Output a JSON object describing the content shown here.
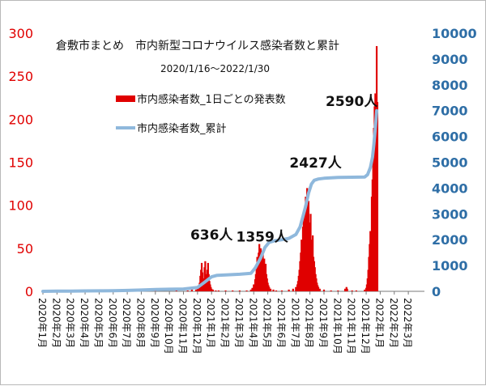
{
  "chart_data": {
    "type": "bar+line",
    "title": "倉敷市まとめ　市内新型コロナウイルス感染者数と累計",
    "subtitle": "2020/1/16～2022/1/30",
    "x_tick_labels": [
      "2020年1月",
      "2020年2月",
      "2020年3月",
      "2020年4月",
      "2020年5月",
      "2020年6月",
      "2020年7月",
      "2020年8月",
      "2020年9月",
      "2020年10月",
      "2020年11月",
      "2020年12月",
      "2021年1月",
      "2021年2月",
      "2021年3月",
      "2021年4月",
      "2021年5月",
      "2021年6月",
      "2021年7月",
      "2021年8月",
      "2021年9月",
      "2021年10月",
      "2021年11月",
      "2021年12月",
      "2022年1月",
      "2022年2月",
      "2022年3月"
    ],
    "y_left": {
      "ticks": [
        0,
        50,
        100,
        150,
        200,
        250,
        300
      ],
      "ylim": [
        0,
        300
      ],
      "color": "#e00000"
    },
    "y_right": {
      "ticks": [
        0,
        1000,
        2000,
        3000,
        4000,
        5000,
        6000,
        7000,
        8000,
        9000,
        10000
      ],
      "ylim": [
        0,
        10000
      ],
      "color": "#2e6ea6"
    },
    "legend": {
      "placement": "top-left",
      "items": [
        {
          "label": "市内感染者数_1日ごとの発表数",
          "kind": "bar",
          "color": "#e00000"
        },
        {
          "label": "市内感染者数_累計",
          "kind": "line",
          "color": "#8fb8dc"
        }
      ]
    },
    "annotations": [
      {
        "text": "636人",
        "month_index": 12.0
      },
      {
        "text": "1359人",
        "month_index": 15.6
      },
      {
        "text": "2427人",
        "month_index": 19.4
      },
      {
        "text": "2590人",
        "month_index": 23.7
      }
    ],
    "series": [
      {
        "name": "市内感染者数_1日ごとの発表数",
        "type": "bar",
        "axis": "left",
        "color": "#e00000",
        "points": [
          [
            7.0,
            1
          ],
          [
            8.0,
            1
          ],
          [
            9.5,
            1
          ],
          [
            10.3,
            1
          ],
          [
            10.6,
            2
          ],
          [
            10.9,
            2
          ],
          [
            11.0,
            4
          ],
          [
            11.1,
            6
          ],
          [
            11.15,
            10
          ],
          [
            11.2,
            18
          ],
          [
            11.25,
            25
          ],
          [
            11.3,
            33
          ],
          [
            11.35,
            22
          ],
          [
            11.4,
            15
          ],
          [
            11.45,
            10
          ],
          [
            11.5,
            28
          ],
          [
            11.55,
            35
          ],
          [
            11.6,
            20
          ],
          [
            11.65,
            14
          ],
          [
            11.7,
            25
          ],
          [
            11.75,
            33
          ],
          [
            11.8,
            20
          ],
          [
            11.85,
            12
          ],
          [
            11.9,
            8
          ],
          [
            11.95,
            5
          ],
          [
            12.0,
            3
          ],
          [
            12.1,
            2
          ],
          [
            12.3,
            1
          ],
          [
            12.5,
            1
          ],
          [
            13.0,
            1
          ],
          [
            13.5,
            1
          ],
          [
            14.0,
            1
          ],
          [
            14.5,
            1
          ],
          [
            14.8,
            2
          ],
          [
            14.9,
            4
          ],
          [
            15.0,
            8
          ],
          [
            15.1,
            14
          ],
          [
            15.15,
            20
          ],
          [
            15.2,
            28
          ],
          [
            15.25,
            40
          ],
          [
            15.3,
            30
          ],
          [
            15.35,
            45
          ],
          [
            15.4,
            55
          ],
          [
            15.45,
            38
          ],
          [
            15.5,
            50
          ],
          [
            15.55,
            42
          ],
          [
            15.6,
            35
          ],
          [
            15.65,
            45
          ],
          [
            15.7,
            30
          ],
          [
            15.75,
            38
          ],
          [
            15.8,
            25
          ],
          [
            15.85,
            32
          ],
          [
            15.9,
            20
          ],
          [
            15.95,
            15
          ],
          [
            16.0,
            10
          ],
          [
            16.05,
            7
          ],
          [
            16.1,
            5
          ],
          [
            16.2,
            3
          ],
          [
            16.4,
            2
          ],
          [
            16.6,
            1
          ],
          [
            17.0,
            1
          ],
          [
            17.5,
            2
          ],
          [
            17.8,
            3
          ],
          [
            18.0,
            5
          ],
          [
            18.1,
            8
          ],
          [
            18.15,
            12
          ],
          [
            18.2,
            18
          ],
          [
            18.25,
            25
          ],
          [
            18.3,
            35
          ],
          [
            18.35,
            45
          ],
          [
            18.4,
            60
          ],
          [
            18.45,
            52
          ],
          [
            18.5,
            75
          ],
          [
            18.55,
            90
          ],
          [
            18.6,
            70
          ],
          [
            18.65,
            100
          ],
          [
            18.7,
            110
          ],
          [
            18.75,
            85
          ],
          [
            18.8,
            120
          ],
          [
            18.85,
            95
          ],
          [
            18.9,
            105
          ],
          [
            18.95,
            80
          ],
          [
            19.0,
            70
          ],
          [
            19.05,
            90
          ],
          [
            19.1,
            60
          ],
          [
            19.15,
            55
          ],
          [
            19.2,
            65
          ],
          [
            19.25,
            40
          ],
          [
            19.3,
            35
          ],
          [
            19.35,
            28
          ],
          [
            19.4,
            20
          ],
          [
            19.45,
            15
          ],
          [
            19.5,
            10
          ],
          [
            19.55,
            7
          ],
          [
            19.6,
            5
          ],
          [
            19.7,
            3
          ],
          [
            20.0,
            2
          ],
          [
            20.5,
            1
          ],
          [
            21.0,
            1
          ],
          [
            21.5,
            3
          ],
          [
            21.6,
            5
          ],
          [
            21.65,
            3
          ],
          [
            22.0,
            1
          ],
          [
            22.3,
            1
          ],
          [
            22.9,
            2
          ],
          [
            23.0,
            4
          ],
          [
            23.05,
            8
          ],
          [
            23.1,
            15
          ],
          [
            23.15,
            25
          ],
          [
            23.2,
            40
          ],
          [
            23.25,
            55
          ],
          [
            23.3,
            70
          ],
          [
            23.35,
            65
          ],
          [
            23.4,
            110
          ],
          [
            23.45,
            130
          ],
          [
            23.5,
            160
          ],
          [
            23.55,
            190
          ],
          [
            23.6,
            215
          ],
          [
            23.65,
            230
          ],
          [
            23.7,
            200
          ],
          [
            23.75,
            285
          ],
          [
            23.8,
            220
          ]
        ]
      },
      {
        "name": "市内感染者数_累計",
        "type": "line",
        "axis": "right",
        "color": "#8fb8dc",
        "points": [
          [
            0,
            0
          ],
          [
            1,
            5
          ],
          [
            2,
            10
          ],
          [
            3,
            15
          ],
          [
            4,
            20
          ],
          [
            5,
            25
          ],
          [
            6,
            35
          ],
          [
            7,
            50
          ],
          [
            8,
            70
          ],
          [
            9,
            80
          ],
          [
            10,
            90
          ],
          [
            11,
            150
          ],
          [
            11.5,
            350
          ],
          [
            12,
            560
          ],
          [
            12.4,
            620
          ],
          [
            13,
            636
          ],
          [
            14,
            660
          ],
          [
            14.8,
            700
          ],
          [
            15.1,
            900
          ],
          [
            15.3,
            1100
          ],
          [
            15.5,
            1300
          ],
          [
            15.8,
            1700
          ],
          [
            16.1,
            1900
          ],
          [
            16.5,
            1960
          ],
          [
            17,
            2000
          ],
          [
            17.5,
            2050
          ],
          [
            18,
            2200
          ],
          [
            18.3,
            2500
          ],
          [
            18.5,
            2900
          ],
          [
            18.7,
            3300
          ],
          [
            18.9,
            3800
          ],
          [
            19.1,
            4150
          ],
          [
            19.3,
            4300
          ],
          [
            19.6,
            4350
          ],
          [
            20,
            4380
          ],
          [
            21,
            4410
          ],
          [
            22,
            4420
          ],
          [
            22.9,
            4430
          ],
          [
            23.1,
            4520
          ],
          [
            23.3,
            4800
          ],
          [
            23.45,
            5200
          ],
          [
            23.55,
            5700
          ],
          [
            23.65,
            6300
          ],
          [
            23.75,
            7000
          ]
        ]
      }
    ]
  }
}
